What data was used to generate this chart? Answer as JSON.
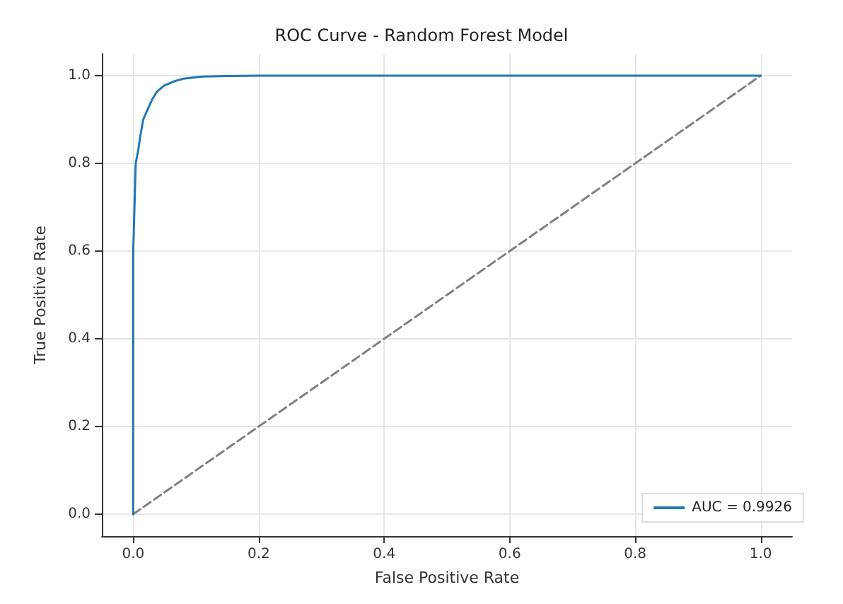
{
  "chart_data": {
    "type": "line",
    "title": "ROC Curve - Random Forest Model",
    "xlabel": "False Positive Rate",
    "ylabel": "True Positive Rate",
    "series": [
      {
        "name": "AUC = 0.9926",
        "color": "#1f77b4",
        "line_style": "solid",
        "x": [
          0,
          0,
          0,
          0.002,
          0.004,
          0.008,
          0.011,
          0.016,
          0.022,
          0.03,
          0.038,
          0.05,
          0.065,
          0.08,
          0.11,
          0.15,
          0.2,
          1
        ],
        "values": [
          0,
          0.3,
          0.6,
          0.7,
          0.8,
          0.83,
          0.86,
          0.9,
          0.92,
          0.945,
          0.964,
          0.978,
          0.987,
          0.993,
          0.998,
          0.999,
          1,
          1
        ]
      },
      {
        "color": "#808080",
        "line_style": "dashed",
        "x": [
          0,
          1
        ],
        "values": [
          0,
          1
        ]
      }
    ],
    "xlim": [
      -0.05,
      1.05
    ],
    "ylim": [
      -0.05,
      1.05
    ],
    "xticks": [
      {
        "value": 0,
        "label": "0.0"
      },
      0.2,
      0.4,
      0.6,
      0.8,
      {
        "value": 1,
        "label": "1.0"
      }
    ],
    "yticks": [
      {
        "value": 0,
        "label": "0.0"
      },
      0.2,
      0.4,
      0.6,
      0.8,
      {
        "value": 1,
        "label": "1.0"
      }
    ],
    "grid": true,
    "legend": "bottom right",
    "marker": "none"
  }
}
